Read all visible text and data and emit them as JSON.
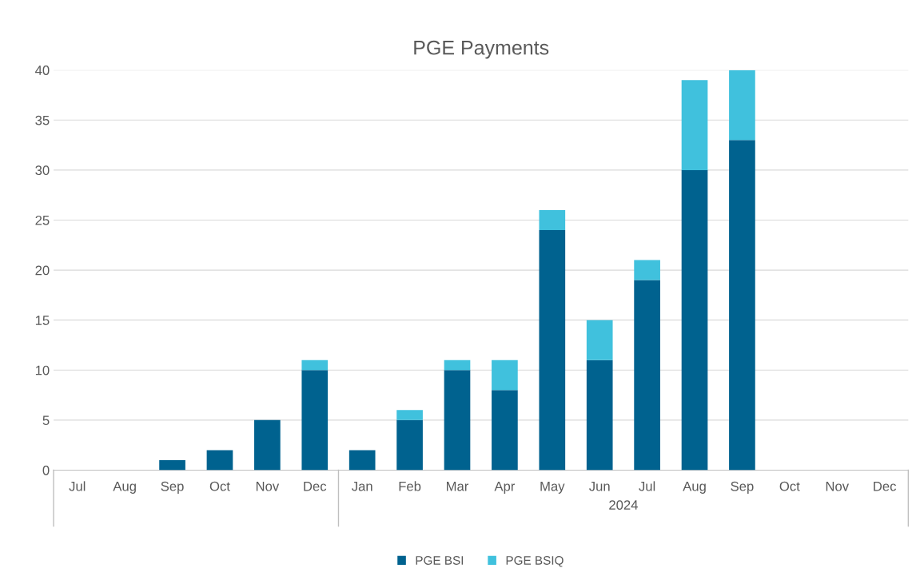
{
  "chart_data": {
    "type": "bar",
    "title": "PGE Payments",
    "categories": [
      "Jul",
      "Aug",
      "Sep",
      "Oct",
      "Nov",
      "Dec",
      "Jan",
      "Feb",
      "Mar",
      "Apr",
      "May",
      "Jun",
      "Jul",
      "Aug",
      "Sep",
      "Oct",
      "Nov",
      "Dec"
    ],
    "series": [
      {
        "name": "PGE BSI",
        "color": "#00628f",
        "values": [
          0,
          0,
          1,
          2,
          5,
          10,
          2,
          5,
          10,
          8,
          24,
          11,
          19,
          30,
          33,
          0,
          0,
          0
        ]
      },
      {
        "name": "PGE BSIQ",
        "color": "#40c1dd",
        "values": [
          0,
          0,
          0,
          0,
          0,
          1,
          0,
          1,
          1,
          3,
          2,
          4,
          2,
          9,
          7,
          0,
          0,
          0
        ]
      }
    ],
    "stacked": true,
    "annotations": [
      "2024"
    ],
    "ylim": [
      0,
      40
    ],
    "yticks": [
      0,
      5,
      10,
      15,
      20,
      25,
      30,
      35,
      40
    ],
    "grid": "y",
    "legend": "bottom"
  }
}
